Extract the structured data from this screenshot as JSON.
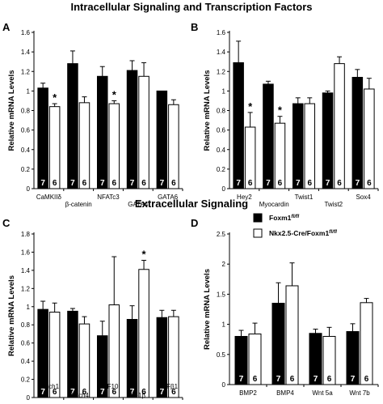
{
  "titles": {
    "top": "Intracellular Signaling and Transcription Factors",
    "middle": "Extracellular Signaling"
  },
  "legend": {
    "control": "Foxm1fl/fl",
    "knockout": "Nkx2.5-Cre/Foxm1fl/fl",
    "control_color": "#000000",
    "knockout_color": "#ffffff"
  },
  "chart_data": [
    {
      "panel": "A",
      "type": "bar",
      "ylabel": "Relative mRNA Levels",
      "ylim": [
        0,
        1.6
      ],
      "yticks": [
        "0",
        "0.2",
        "0.4",
        "0.6",
        "0.8",
        "1",
        "1.2",
        "1.4",
        "1.6"
      ],
      "categories": [
        "CaMKIIδ",
        "β-catenin",
        "NFATc3",
        "GATA4",
        "GATA6"
      ],
      "series": [
        {
          "name": "Foxm1fl/fl",
          "values": [
            1.03,
            1.28,
            1.15,
            1.21,
            1.0
          ],
          "errors": [
            0.05,
            0.13,
            0.1,
            0.1,
            0.0
          ]
        },
        {
          "name": "Nkx2.5-Cre/Foxm1fl/fl",
          "values": [
            0.84,
            0.88,
            0.87,
            1.15,
            0.86
          ],
          "errors": [
            0.03,
            0.06,
            0.03,
            0.14,
            0.05
          ]
        }
      ],
      "n_labels": [
        "7",
        "6"
      ],
      "significant": [
        true,
        false,
        true,
        false,
        false
      ]
    },
    {
      "panel": "B",
      "type": "bar",
      "ylabel": "Relative mRNA Levels",
      "ylim": [
        0,
        1.6
      ],
      "yticks": [
        "0",
        "0.2",
        "0.4",
        "0.6",
        "0.8",
        "1",
        "1.2",
        "1.4",
        "1.6"
      ],
      "categories": [
        "Hey2",
        "Myocardin",
        "Twist1",
        "Twist2",
        "Sox4"
      ],
      "series": [
        {
          "name": "Foxm1fl/fl",
          "values": [
            1.29,
            1.07,
            0.87,
            0.98,
            1.14
          ],
          "errors": [
            0.22,
            0.03,
            0.06,
            0.02,
            0.08
          ]
        },
        {
          "name": "Nkx2.5-Cre/Foxm1fl/fl",
          "values": [
            0.63,
            0.67,
            0.87,
            1.28,
            1.02
          ],
          "errors": [
            0.15,
            0.07,
            0.06,
            0.07,
            0.11
          ]
        }
      ],
      "n_labels": [
        "7",
        "6"
      ],
      "significant": [
        true,
        true,
        false,
        false,
        false
      ]
    },
    {
      "panel": "C",
      "type": "bar",
      "ylabel": "Relative mRNA Levels",
      "ylim": [
        0,
        1.8
      ],
      "yticks": [
        "0",
        "0.2",
        "0.4",
        "0.6",
        "0.8",
        "1",
        "1.2",
        "1.4",
        "1.6",
        "1.8"
      ],
      "categories": [
        "Notch1",
        "Notch4",
        "FGF10",
        "IL-1β",
        "TGFβ1"
      ],
      "series": [
        {
          "name": "Foxm1fl/fl",
          "values": [
            0.97,
            0.95,
            0.68,
            0.86,
            0.88
          ],
          "errors": [
            0.09,
            0.03,
            0.16,
            0.15,
            0.08
          ]
        },
        {
          "name": "Nkx2.5-Cre/Foxm1fl/fl",
          "values": [
            0.94,
            0.81,
            1.02,
            1.41,
            0.89
          ],
          "errors": [
            0.1,
            0.08,
            0.53,
            0.1,
            0.07
          ]
        }
      ],
      "n_labels": [
        "7",
        "6"
      ],
      "significant": [
        false,
        false,
        false,
        true,
        false
      ]
    },
    {
      "panel": "D",
      "type": "bar",
      "ylabel": "Relative mRNA Levels",
      "ylim": [
        0,
        2.5
      ],
      "yticks": [
        "0",
        "0.5",
        "1",
        "1.5",
        "2",
        "2.5"
      ],
      "categories": [
        "BMP2",
        "BMP4",
        "Wnt 5a",
        "Wnt 7b"
      ],
      "series": [
        {
          "name": "Foxm1fl/fl",
          "values": [
            0.8,
            1.35,
            0.85,
            0.88
          ],
          "errors": [
            0.1,
            0.34,
            0.07,
            0.13
          ]
        },
        {
          "name": "Nkx2.5-Cre/Foxm1fl/fl",
          "values": [
            0.84,
            1.64,
            0.8,
            1.36
          ],
          "errors": [
            0.18,
            0.38,
            0.15,
            0.07
          ]
        }
      ],
      "n_labels": [
        "7",
        "6"
      ],
      "significant": [
        false,
        false,
        false,
        false
      ]
    }
  ]
}
